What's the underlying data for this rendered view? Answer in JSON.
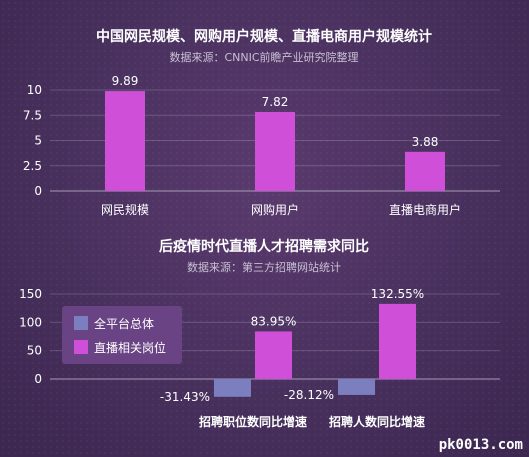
{
  "chart_data": [
    {
      "type": "bar",
      "title": "中国网民规模、网购用户规模、直播电商用户规模统计",
      "subtitle": "数据来源：CNNIC前瞻产业研究院整理",
      "categories": [
        "网民规模",
        "网购用户",
        "直播电商用户"
      ],
      "values": [
        9.89,
        7.82,
        3.88
      ],
      "value_labels": [
        "9.89",
        "7.82",
        "3.88"
      ],
      "ylim": [
        0,
        10
      ],
      "yticks": [
        0,
        2.5,
        5,
        7.5,
        10
      ],
      "ytick_labels": [
        "0",
        "2.5",
        "5",
        "7.5",
        "10"
      ],
      "bar_color": "#d04fd9",
      "grid": true
    },
    {
      "type": "bar",
      "title": "后疫情时代直播人才招聘需求同比",
      "subtitle": "数据来源：第三方招聘网站统计",
      "categories": [
        "招聘职位数同比增速",
        "招聘人数同比增速"
      ],
      "series": [
        {
          "name": "全平台总体",
          "values": [
            -31.43,
            -28.12
          ],
          "labels": [
            "-31.43%",
            "-28.12%"
          ],
          "color": "#7b7fbf"
        },
        {
          "name": "直播相关岗位",
          "values": [
            83.95,
            132.55
          ],
          "labels": [
            "83.95%",
            "132.55%"
          ],
          "color": "#d04fd9"
        }
      ],
      "ylim": [
        -40,
        150
      ],
      "yticks": [
        0,
        50,
        100,
        150
      ],
      "ytick_labels": [
        "0",
        "50",
        "100",
        "150"
      ],
      "legend_position": "left",
      "grid": true
    }
  ],
  "watermark": "pk0013.com"
}
